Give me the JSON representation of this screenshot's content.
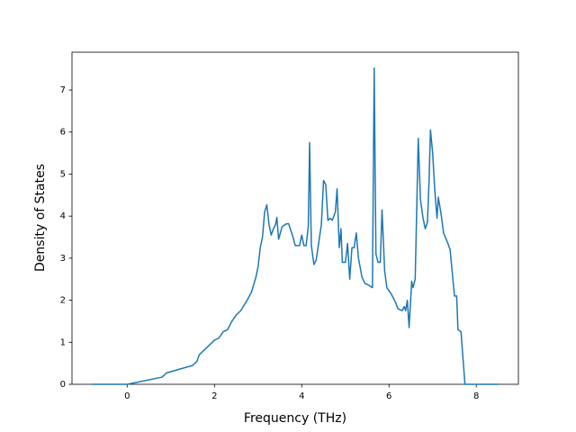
{
  "chart_data": {
    "type": "line",
    "x_label": "Frequency (THz)",
    "y_label": "Density of States",
    "x": [
      -0.8,
      0,
      0.8,
      0.9,
      1.0,
      1.5,
      1.6,
      1.65,
      1.8,
      2.0,
      2.1,
      2.2,
      2.3,
      2.4,
      2.5,
      2.6,
      2.75,
      2.85,
      2.95,
      3.0,
      3.05,
      3.1,
      3.15,
      3.2,
      3.25,
      3.3,
      3.35,
      3.4,
      3.43,
      3.47,
      3.55,
      3.65,
      3.7,
      3.8,
      3.85,
      3.95,
      4.0,
      4.05,
      4.1,
      4.15,
      4.18,
      4.22,
      4.28,
      4.33,
      4.45,
      4.5,
      4.55,
      4.6,
      4.65,
      4.7,
      4.77,
      4.81,
      4.86,
      4.9,
      4.93,
      5.0,
      5.05,
      5.1,
      5.15,
      5.2,
      5.25,
      5.3,
      5.38,
      5.45,
      5.55,
      5.62,
      5.66,
      5.7,
      5.75,
      5.8,
      5.84,
      5.9,
      5.95,
      6.05,
      6.15,
      6.2,
      6.3,
      6.35,
      6.38,
      6.42,
      6.46,
      6.52,
      6.55,
      6.6,
      6.67,
      6.72,
      6.78,
      6.83,
      6.88,
      6.92,
      6.95,
      7.0,
      7.05,
      7.1,
      7.13,
      7.2,
      7.25,
      7.35,
      7.4,
      7.45,
      7.5,
      7.55,
      7.58,
      7.65,
      7.74,
      8.5
    ],
    "series": [
      {
        "color": "#1f77b4",
        "values": [
          0,
          0,
          0.17,
          0.27,
          0.3,
          0.45,
          0.55,
          0.7,
          0.85,
          1.05,
          1.1,
          1.25,
          1.3,
          1.5,
          1.65,
          1.75,
          2.0,
          2.2,
          2.55,
          2.8,
          3.25,
          3.5,
          4.1,
          4.27,
          3.8,
          3.55,
          3.7,
          3.8,
          3.97,
          3.45,
          3.75,
          3.82,
          3.82,
          3.5,
          3.3,
          3.3,
          3.55,
          3.3,
          3.3,
          3.75,
          5.75,
          3.3,
          2.85,
          2.95,
          3.8,
          4.85,
          4.75,
          3.9,
          3.95,
          3.9,
          4.1,
          4.65,
          3.25,
          3.7,
          2.9,
          2.9,
          3.35,
          2.5,
          3.25,
          3.25,
          3.6,
          3.0,
          2.55,
          2.4,
          2.35,
          2.3,
          7.52,
          3.1,
          2.9,
          2.9,
          4.15,
          2.7,
          2.3,
          2.15,
          1.95,
          1.8,
          1.75,
          1.85,
          1.75,
          2.0,
          1.35,
          2.45,
          2.3,
          2.5,
          5.85,
          4.4,
          3.95,
          3.7,
          3.85,
          4.9,
          6.05,
          5.5,
          4.6,
          3.95,
          4.45,
          4.0,
          3.6,
          3.35,
          3.2,
          2.65,
          2.1,
          2.1,
          1.3,
          1.25,
          0,
          0
        ]
      }
    ],
    "xlim": [
      -1.265,
      8.965
    ],
    "ylim": [
      0,
      7.9
    ],
    "xticks": [
      0,
      2,
      4,
      6,
      8
    ],
    "yticks": [
      0,
      1,
      2,
      3,
      4,
      5,
      6,
      7
    ]
  }
}
